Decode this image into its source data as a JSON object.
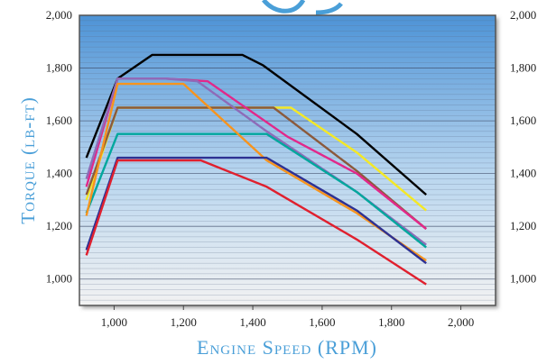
{
  "chart_data": {
    "type": "line",
    "title": "",
    "xlabel": "Engine Speed (RPM)",
    "ylabel": "Torque (lb-ft)",
    "xlim": [
      900,
      2100
    ],
    "ylim": [
      900,
      2000
    ],
    "x_ticks": [
      1000,
      1200,
      1400,
      1600,
      1800,
      2000
    ],
    "x_tick_labels": [
      "1,000",
      "1,200",
      "1,400",
      "1,600",
      "1,800",
      "2,000"
    ],
    "y_ticks": [
      1000,
      1200,
      1400,
      1600,
      1800,
      2000
    ],
    "y_tick_labels": [
      "1,000",
      "1,200",
      "1,400",
      "1,600",
      "1,800",
      "2,000"
    ],
    "grid": true,
    "legend": "none",
    "colors": {
      "axis_label": "#4a9fd8",
      "plot_top": "#4d93d6",
      "plot_bottom": "#f2f2f2"
    },
    "series": [
      {
        "color": "#000000",
        "x": [
          920,
          1010,
          1110,
          1200,
          1370,
          1430,
          1700,
          1900
        ],
        "y": [
          1460,
          1760,
          1850,
          1850,
          1850,
          1810,
          1550,
          1320
        ]
      },
      {
        "color": "#f4e826",
        "x": [
          920,
          1010,
          1200,
          1510,
          1700,
          1900
        ],
        "y": [
          1300,
          1650,
          1650,
          1650,
          1480,
          1260
        ]
      },
      {
        "color": "#8b5a3c",
        "x": [
          920,
          1010,
          1200,
          1460,
          1700,
          1900
        ],
        "y": [
          1320,
          1650,
          1650,
          1650,
          1410,
          1190
        ]
      },
      {
        "color": "#e2288a",
        "x": [
          920,
          1010,
          1150,
          1270,
          1500,
          1700,
          1900
        ],
        "y": [
          1350,
          1760,
          1760,
          1750,
          1540,
          1400,
          1190
        ]
      },
      {
        "color": "#8e6bb8",
        "x": [
          920,
          1010,
          1150,
          1240,
          1440,
          1700,
          1900
        ],
        "y": [
          1380,
          1760,
          1760,
          1750,
          1560,
          1330,
          1130
        ]
      },
      {
        "color": "#00a79d",
        "x": [
          920,
          1010,
          1200,
          1440,
          1700,
          1900
        ],
        "y": [
          1250,
          1550,
          1550,
          1550,
          1330,
          1120
        ]
      },
      {
        "color": "#f7941d",
        "x": [
          920,
          1010,
          1200,
          1440,
          1700,
          1900
        ],
        "y": [
          1240,
          1740,
          1740,
          1450,
          1250,
          1070
        ]
      },
      {
        "color": "#2e3192",
        "x": [
          920,
          1010,
          1200,
          1440,
          1700,
          1900
        ],
        "y": [
          1110,
          1460,
          1460,
          1460,
          1260,
          1060
        ]
      },
      {
        "color": "#e0202e",
        "x": [
          920,
          1010,
          1250,
          1440,
          1700,
          1900
        ],
        "y": [
          1090,
          1450,
          1450,
          1350,
          1150,
          980
        ]
      }
    ]
  }
}
